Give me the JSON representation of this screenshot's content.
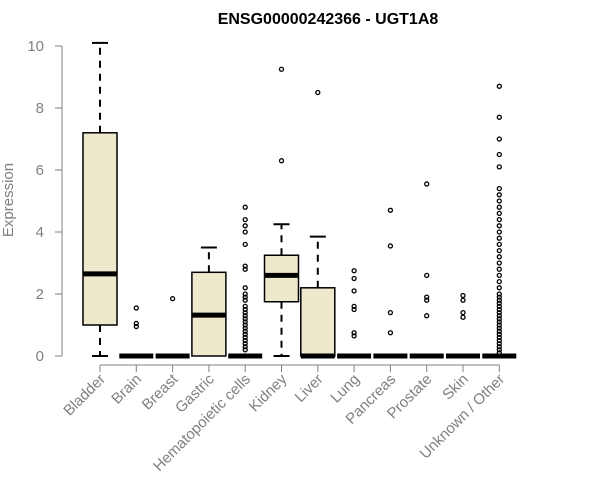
{
  "chart_data": {
    "type": "box",
    "title": "ENSG00000242366 - UGT1A8",
    "xlabel": "",
    "ylabel": "Expression",
    "ylim": [
      0,
      10
    ],
    "yticks": [
      0,
      2,
      4,
      6,
      8,
      10
    ],
    "colors": {
      "box_fill": "#EEE8CD",
      "stroke": "#000000",
      "axis_text": "#808080"
    },
    "categories": [
      "Bladder",
      "Brain",
      "Breast",
      "Gastric",
      "Hematopoietic cells",
      "Kidney",
      "Liver",
      "Lung",
      "Pancreas",
      "Prostate",
      "Skin",
      "Unknown / Other"
    ],
    "boxes": [
      {
        "min": 0,
        "q1": 1.0,
        "median": 2.65,
        "q3": 7.2,
        "max": 10.1,
        "outliers": []
      },
      {
        "min": 0,
        "q1": 0,
        "median": 0,
        "q3": 0,
        "max": 0,
        "outliers": [
          0.95,
          1.05,
          1.55
        ]
      },
      {
        "min": 0,
        "q1": 0,
        "median": 0,
        "q3": 0,
        "max": 0,
        "outliers": [
          1.85
        ]
      },
      {
        "min": 0,
        "q1": 0,
        "median": 1.32,
        "q3": 2.7,
        "max": 3.5,
        "outliers": []
      },
      {
        "min": 0,
        "q1": 0,
        "median": 0,
        "q3": 0,
        "max": 0,
        "outliers": [
          0.2,
          0.3,
          0.4,
          0.5,
          0.6,
          0.7,
          0.8,
          0.9,
          1.0,
          1.1,
          1.2,
          1.3,
          1.4,
          1.5,
          1.6,
          1.8,
          1.9,
          2.0,
          2.2,
          2.8,
          2.9,
          3.6,
          4.0,
          4.2,
          4.4,
          4.8
        ]
      },
      {
        "min": 0,
        "q1": 1.75,
        "median": 2.6,
        "q3": 3.25,
        "max": 4.25,
        "outliers": [
          6.3,
          9.25
        ]
      },
      {
        "min": 0,
        "q1": 0,
        "median": 0,
        "q3": 2.2,
        "max": 3.85,
        "outliers": [
          8.5
        ]
      },
      {
        "min": 0,
        "q1": 0,
        "median": 0,
        "q3": 0,
        "max": 0,
        "outliers": [
          0.65,
          0.75,
          1.5,
          1.6,
          2.1,
          2.5,
          2.75
        ]
      },
      {
        "min": 0,
        "q1": 0,
        "median": 0,
        "q3": 0,
        "max": 0,
        "outliers": [
          0.75,
          1.4,
          3.55,
          4.7
        ]
      },
      {
        "min": 0,
        "q1": 0,
        "median": 0,
        "q3": 0,
        "max": 0,
        "outliers": [
          1.3,
          1.8,
          1.9,
          2.6,
          5.55
        ]
      },
      {
        "min": 0,
        "q1": 0,
        "median": 0,
        "q3": 0,
        "max": 0,
        "outliers": [
          1.25,
          1.4,
          1.8,
          1.95
        ]
      },
      {
        "min": 0,
        "q1": 0,
        "median": 0,
        "q3": 0,
        "max": 0,
        "outliers": [
          0.1,
          0.2,
          0.3,
          0.4,
          0.5,
          0.6,
          0.7,
          0.8,
          0.9,
          1.0,
          1.1,
          1.2,
          1.3,
          1.4,
          1.5,
          1.6,
          1.7,
          1.8,
          1.9,
          2.0,
          2.2,
          2.4,
          2.6,
          2.8,
          3.0,
          3.2,
          3.4,
          3.6,
          3.8,
          4.0,
          4.2,
          4.4,
          4.6,
          4.8,
          5.0,
          5.2,
          5.4,
          6.1,
          6.5,
          7.0,
          7.7,
          8.7
        ]
      }
    ]
  }
}
